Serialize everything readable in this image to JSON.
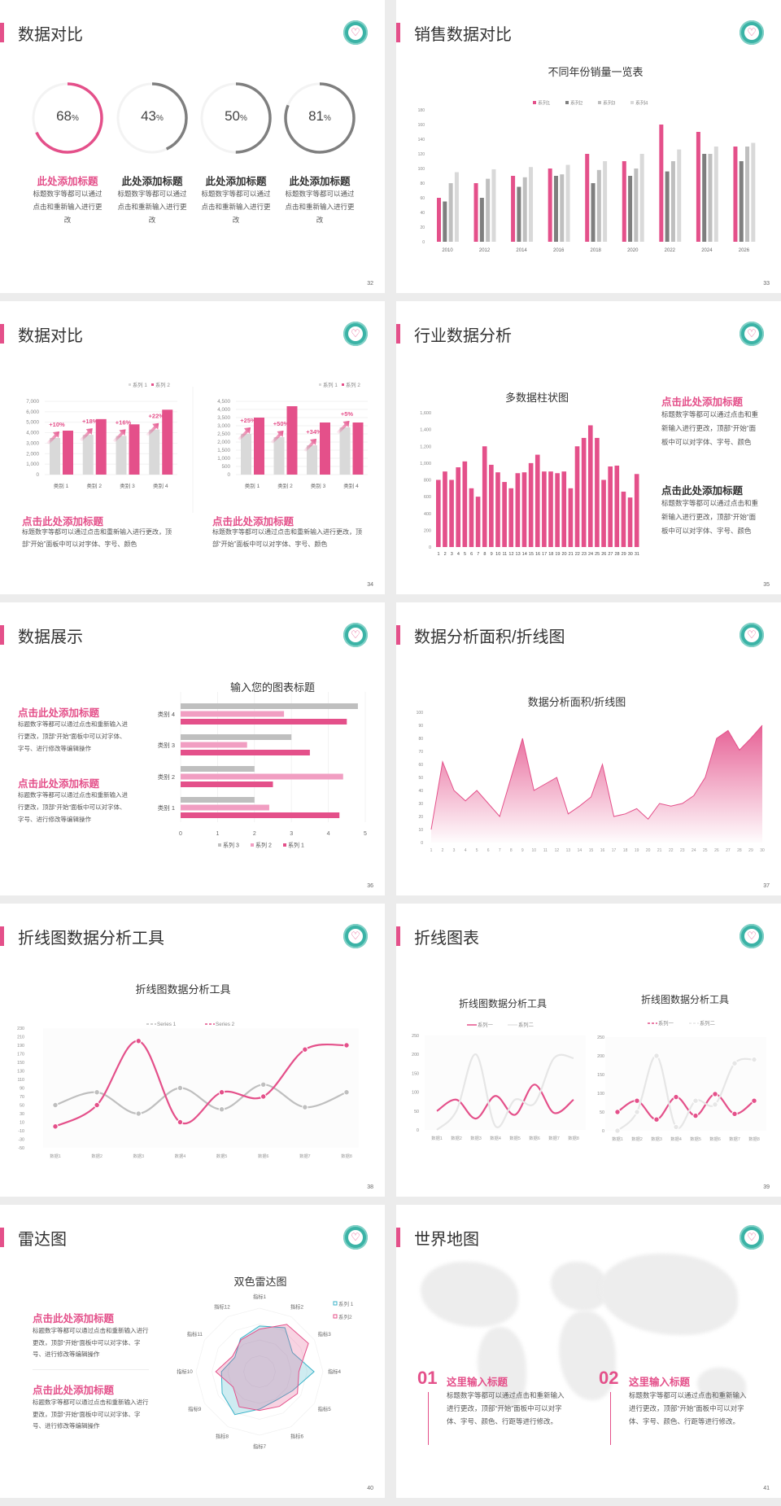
{
  "colors": {
    "accent": "#e4508a",
    "accent_light": "#f19ec2",
    "grey_dark": "#7f7f7f",
    "grey_mid": "#bfbfbf",
    "grey_light": "#d9d9d9",
    "teal": "#3bb3a6"
  },
  "logo_icon": "heart-circle-logo-icon",
  "slides": [
    {
      "page": "32",
      "title": "数据对比",
      "items": [
        {
          "value": 68,
          "label": "68",
          "unit": "%",
          "heading": "此处添加标题",
          "desc": "标题数字等都可以通过点击和重新输入进行更改"
        },
        {
          "value": 43,
          "label": "43",
          "unit": "%",
          "heading": "此处添加标题",
          "desc": "标题数字等都可以通过点击和重新输入进行更改"
        },
        {
          "value": 50,
          "label": "50",
          "unit": "%",
          "heading": "此处添加标题",
          "desc": "标题数字等都可以通过点击和重新输入进行更改"
        },
        {
          "value": 81,
          "label": "81",
          "unit": "%",
          "heading": "此处添加标题",
          "desc": "标题数字等都可以通过点击和重新输入进行更改"
        }
      ]
    },
    {
      "page": "33",
      "title": "销售数据对比"
    },
    {
      "page": "34",
      "title": "数据对比",
      "blocks": [
        {
          "heading": "点击此处添加标题",
          "desc": "标题数字等都可以通过点击和重新输入进行更改，顶部“开始”面板中可以对字体、字号、颜色"
        },
        {
          "heading": "点击此处添加标题",
          "desc": "标题数字等都可以通过点击和重新输入进行更改，顶部“开始”面板中可以对字体、字号、颜色"
        }
      ]
    },
    {
      "page": "35",
      "title": "行业数据分析",
      "blocks": [
        {
          "heading": "点击此处添加标题",
          "desc": "标题数字等都可以通过点击和重新输入进行更改，顶部“开始”面板中可以对字体、字号、颜色"
        },
        {
          "heading": "点击此处添加标题",
          "desc": "标题数字等都可以通过点击和重新输入进行更改，顶部“开始”面板中可以对字体、字号、颜色"
        }
      ]
    },
    {
      "page": "36",
      "title": "数据展示",
      "blocks": [
        {
          "heading": "点击此处添加标题",
          "desc": "标题数字等都可以通过点击和重新输入进行更改，顶部“开始”面板中可以对字体、字号、进行修改等编辑操作"
        },
        {
          "heading": "点击此处添加标题",
          "desc": "标题数字等都可以通过点击和重新输入进行更改，顶部“开始”面板中可以对字体、字号、进行修改等编辑操作"
        }
      ]
    },
    {
      "page": "37",
      "title": "数据分析面积/折线图"
    },
    {
      "page": "38",
      "title": "折线图数据分析工具"
    },
    {
      "page": "39",
      "title": "折线图表"
    },
    {
      "page": "40",
      "title": "雷达图",
      "blocks": [
        {
          "heading": "点击此处添加标题",
          "desc": "标题数字等都可以通过点击和重新输入进行更改，顶部“开始”面板中可以对字体、字号、进行修改等编辑操作"
        },
        {
          "heading": "点击此处添加标题",
          "desc": "标题数字等都可以通过点击和重新输入进行更改，顶部“开始”面板中可以对字体、字号、进行修改等编辑操作"
        }
      ]
    },
    {
      "page": "41",
      "title": "世界地图",
      "blocks": [
        {
          "num": "01",
          "heading": "这里输入标题",
          "desc": "标题数字等都可以通过点击和重新输入进行更改，顶部“开始”面板中可以对字体、字号、颜色、行距等进行修改。"
        },
        {
          "num": "02",
          "heading": "这里输入标题",
          "desc": "标题数字等都可以通过点击和重新输入进行更改，顶部“开始”面板中可以对字体、字号、颜色、行距等进行修改。"
        }
      ]
    }
  ],
  "chart_data": [
    {
      "type": "bar",
      "title": "不同年份销量一览表",
      "categories": [
        "2010",
        "2012",
        "2014",
        "2016",
        "2018",
        "2020",
        "2022",
        "2024",
        "2026"
      ],
      "series": [
        {
          "name": "系列1",
          "values": [
            60,
            80,
            90,
            100,
            120,
            110,
            160,
            150,
            130
          ]
        },
        {
          "name": "系列2",
          "values": [
            55,
            60,
            75,
            90,
            80,
            90,
            96,
            120,
            110
          ]
        },
        {
          "name": "系列3",
          "values": [
            80,
            86,
            88,
            92,
            98,
            100,
            110,
            120,
            130
          ]
        },
        {
          "name": "系列4",
          "values": [
            95,
            99,
            102,
            105,
            110,
            120,
            126,
            130,
            135
          ]
        }
      ],
      "ylim": [
        0,
        180
      ],
      "ytick_step": 20,
      "legend": "top",
      "grid": false
    },
    {
      "type": "bar",
      "categories": [
        "类别 1",
        "类别 2",
        "类别 3",
        "类别 4"
      ],
      "series": [
        {
          "name": "系列 1",
          "values": [
            3500,
            3800,
            3700,
            4300
          ]
        },
        {
          "name": "系列 2",
          "values": [
            4200,
            5300,
            4800,
            6200
          ]
        }
      ],
      "annotations": [
        "+10%",
        "+18%",
        "+16%",
        "+22%"
      ],
      "ylim": [
        0,
        7000
      ],
      "ytick_step": 1000,
      "legend": "top-right",
      "grid": true
    },
    {
      "type": "bar",
      "categories": [
        "类别 1",
        "类别 2",
        "类别 3",
        "类别 4"
      ],
      "series": [
        {
          "name": "系列 1",
          "values": [
            2500,
            2300,
            1800,
            2900
          ]
        },
        {
          "name": "系列 2",
          "values": [
            3500,
            4200,
            3200,
            3200
          ]
        }
      ],
      "annotations": [
        "+25%",
        "+50%",
        "+34%",
        "+5%"
      ],
      "ylim": [
        0,
        4500
      ],
      "ytick_step": 500,
      "legend": "top-right",
      "grid": true
    },
    {
      "type": "bar",
      "title": "多数据柱状图",
      "categories": [
        "1",
        "2",
        "3",
        "4",
        "5",
        "6",
        "7",
        "8",
        "9",
        "10",
        "11",
        "12",
        "13",
        "14",
        "15",
        "16",
        "17",
        "18",
        "19",
        "20",
        "21",
        "22",
        "23",
        "24",
        "25",
        "26",
        "27",
        "28",
        "29",
        "30",
        "31"
      ],
      "values": [
        800,
        900,
        800,
        950,
        1020,
        700,
        600,
        1200,
        980,
        890,
        775,
        700,
        880,
        890,
        1000,
        1100,
        900,
        900,
        880,
        900,
        700,
        1200,
        1300,
        1450,
        1300,
        800,
        960,
        970,
        660,
        590,
        870
      ],
      "ylim": [
        0,
        1600
      ],
      "ytick_step": 200,
      "grid": false
    },
    {
      "type": "bar",
      "orientation": "horizontal",
      "title": "输入您的图表标题",
      "categories": [
        "类别 1",
        "类别 2",
        "类别 3",
        "类别 4"
      ],
      "series": [
        {
          "name": "系列 1",
          "values": [
            4.3,
            2.5,
            3.5,
            4.5
          ]
        },
        {
          "name": "系列 2",
          "values": [
            2.4,
            4.4,
            1.8,
            2.8
          ]
        },
        {
          "name": "系列 3",
          "values": [
            2,
            2,
            3,
            4.8
          ]
        }
      ],
      "legend_order": [
        "系列 3",
        "系列 2",
        "系列 1"
      ],
      "xlim": [
        0,
        5
      ],
      "xtick_step": 1,
      "legend": "bottom",
      "grid": true
    },
    {
      "type": "area",
      "title": "数据分析面积/折线图",
      "x": [
        1,
        2,
        3,
        4,
        5,
        6,
        7,
        8,
        9,
        10,
        11,
        12,
        13,
        14,
        15,
        16,
        17,
        18,
        19,
        20,
        21,
        22,
        23,
        24,
        25,
        26,
        27,
        28,
        29,
        30
      ],
      "values": [
        10,
        62,
        40,
        32,
        40,
        30,
        20,
        50,
        80,
        40,
        45,
        50,
        22,
        28,
        35,
        60,
        20,
        22,
        26,
        18,
        30,
        28,
        30,
        36,
        50,
        80,
        86,
        71,
        80,
        90
      ],
      "ylim": [
        0,
        100
      ],
      "ytick_step": 10,
      "grid": false
    },
    {
      "type": "line",
      "smooth": true,
      "title": "折线图数据分析工具",
      "categories": [
        "数据1",
        "数据2",
        "数据3",
        "数据4",
        "数据5",
        "数据6",
        "数据7",
        "数据8"
      ],
      "series": [
        {
          "name": "Series 1",
          "values": [
            50,
            80,
            30,
            90,
            40,
            98,
            45,
            80
          ]
        },
        {
          "name": "Series 2",
          "values": [
            0,
            50,
            200,
            10,
            80,
            70,
            180,
            190
          ]
        }
      ],
      "ylim": [
        -50,
        230
      ],
      "ytick_step": 20,
      "legend": "top",
      "markers": true
    },
    {
      "type": "line",
      "smooth": true,
      "title": "折线图数据分析工具",
      "categories": [
        "数据1",
        "数据2",
        "数据3",
        "数据4",
        "数据5",
        "数据6",
        "数据7",
        "数据8"
      ],
      "series": [
        {
          "name": "系列一",
          "values": [
            50,
            80,
            30,
            90,
            40,
            120,
            45,
            80
          ]
        },
        {
          "name": "系列二",
          "values": [
            0,
            50,
            200,
            10,
            80,
            70,
            190,
            190
          ]
        }
      ],
      "ylim": [
        0,
        250
      ],
      "ytick_step": 50,
      "legend": "top",
      "markers": false
    },
    {
      "type": "line",
      "smooth": true,
      "title": "折线图数据分析工具",
      "categories": [
        "数据1",
        "数据2",
        "数据3",
        "数据4",
        "数据5",
        "数据6",
        "数据7",
        "数据8"
      ],
      "series": [
        {
          "name": "系列一",
          "values": [
            50,
            80,
            30,
            90,
            40,
            98,
            45,
            80
          ]
        },
        {
          "name": "系列二",
          "values": [
            0,
            50,
            200,
            10,
            80,
            70,
            180,
            190
          ]
        }
      ],
      "ylim": [
        0,
        250
      ],
      "ytick_step": 50,
      "legend": "top",
      "markers": true
    },
    {
      "type": "radar",
      "title": "双色雷达图",
      "categories": [
        "指标1",
        "指标2",
        "指标3",
        "指标4",
        "指标5",
        "指标6",
        "指标7",
        "指标8",
        "指标9",
        "指标10",
        "指标11",
        "指标12"
      ],
      "series": [
        {
          "name": "系列 1",
          "color": "#3bb3c9",
          "values": [
            72,
            80,
            60,
            86,
            60,
            52,
            59,
            78,
            68,
            60,
            45,
            60
          ]
        },
        {
          "name": "系列2",
          "color": "#e4508a",
          "values": [
            67,
            86,
            89,
            62,
            69,
            63,
            61,
            64,
            48,
            69,
            49,
            58
          ]
        }
      ],
      "rlim": [
        0,
        100
      ],
      "legend": "top-right"
    }
  ]
}
